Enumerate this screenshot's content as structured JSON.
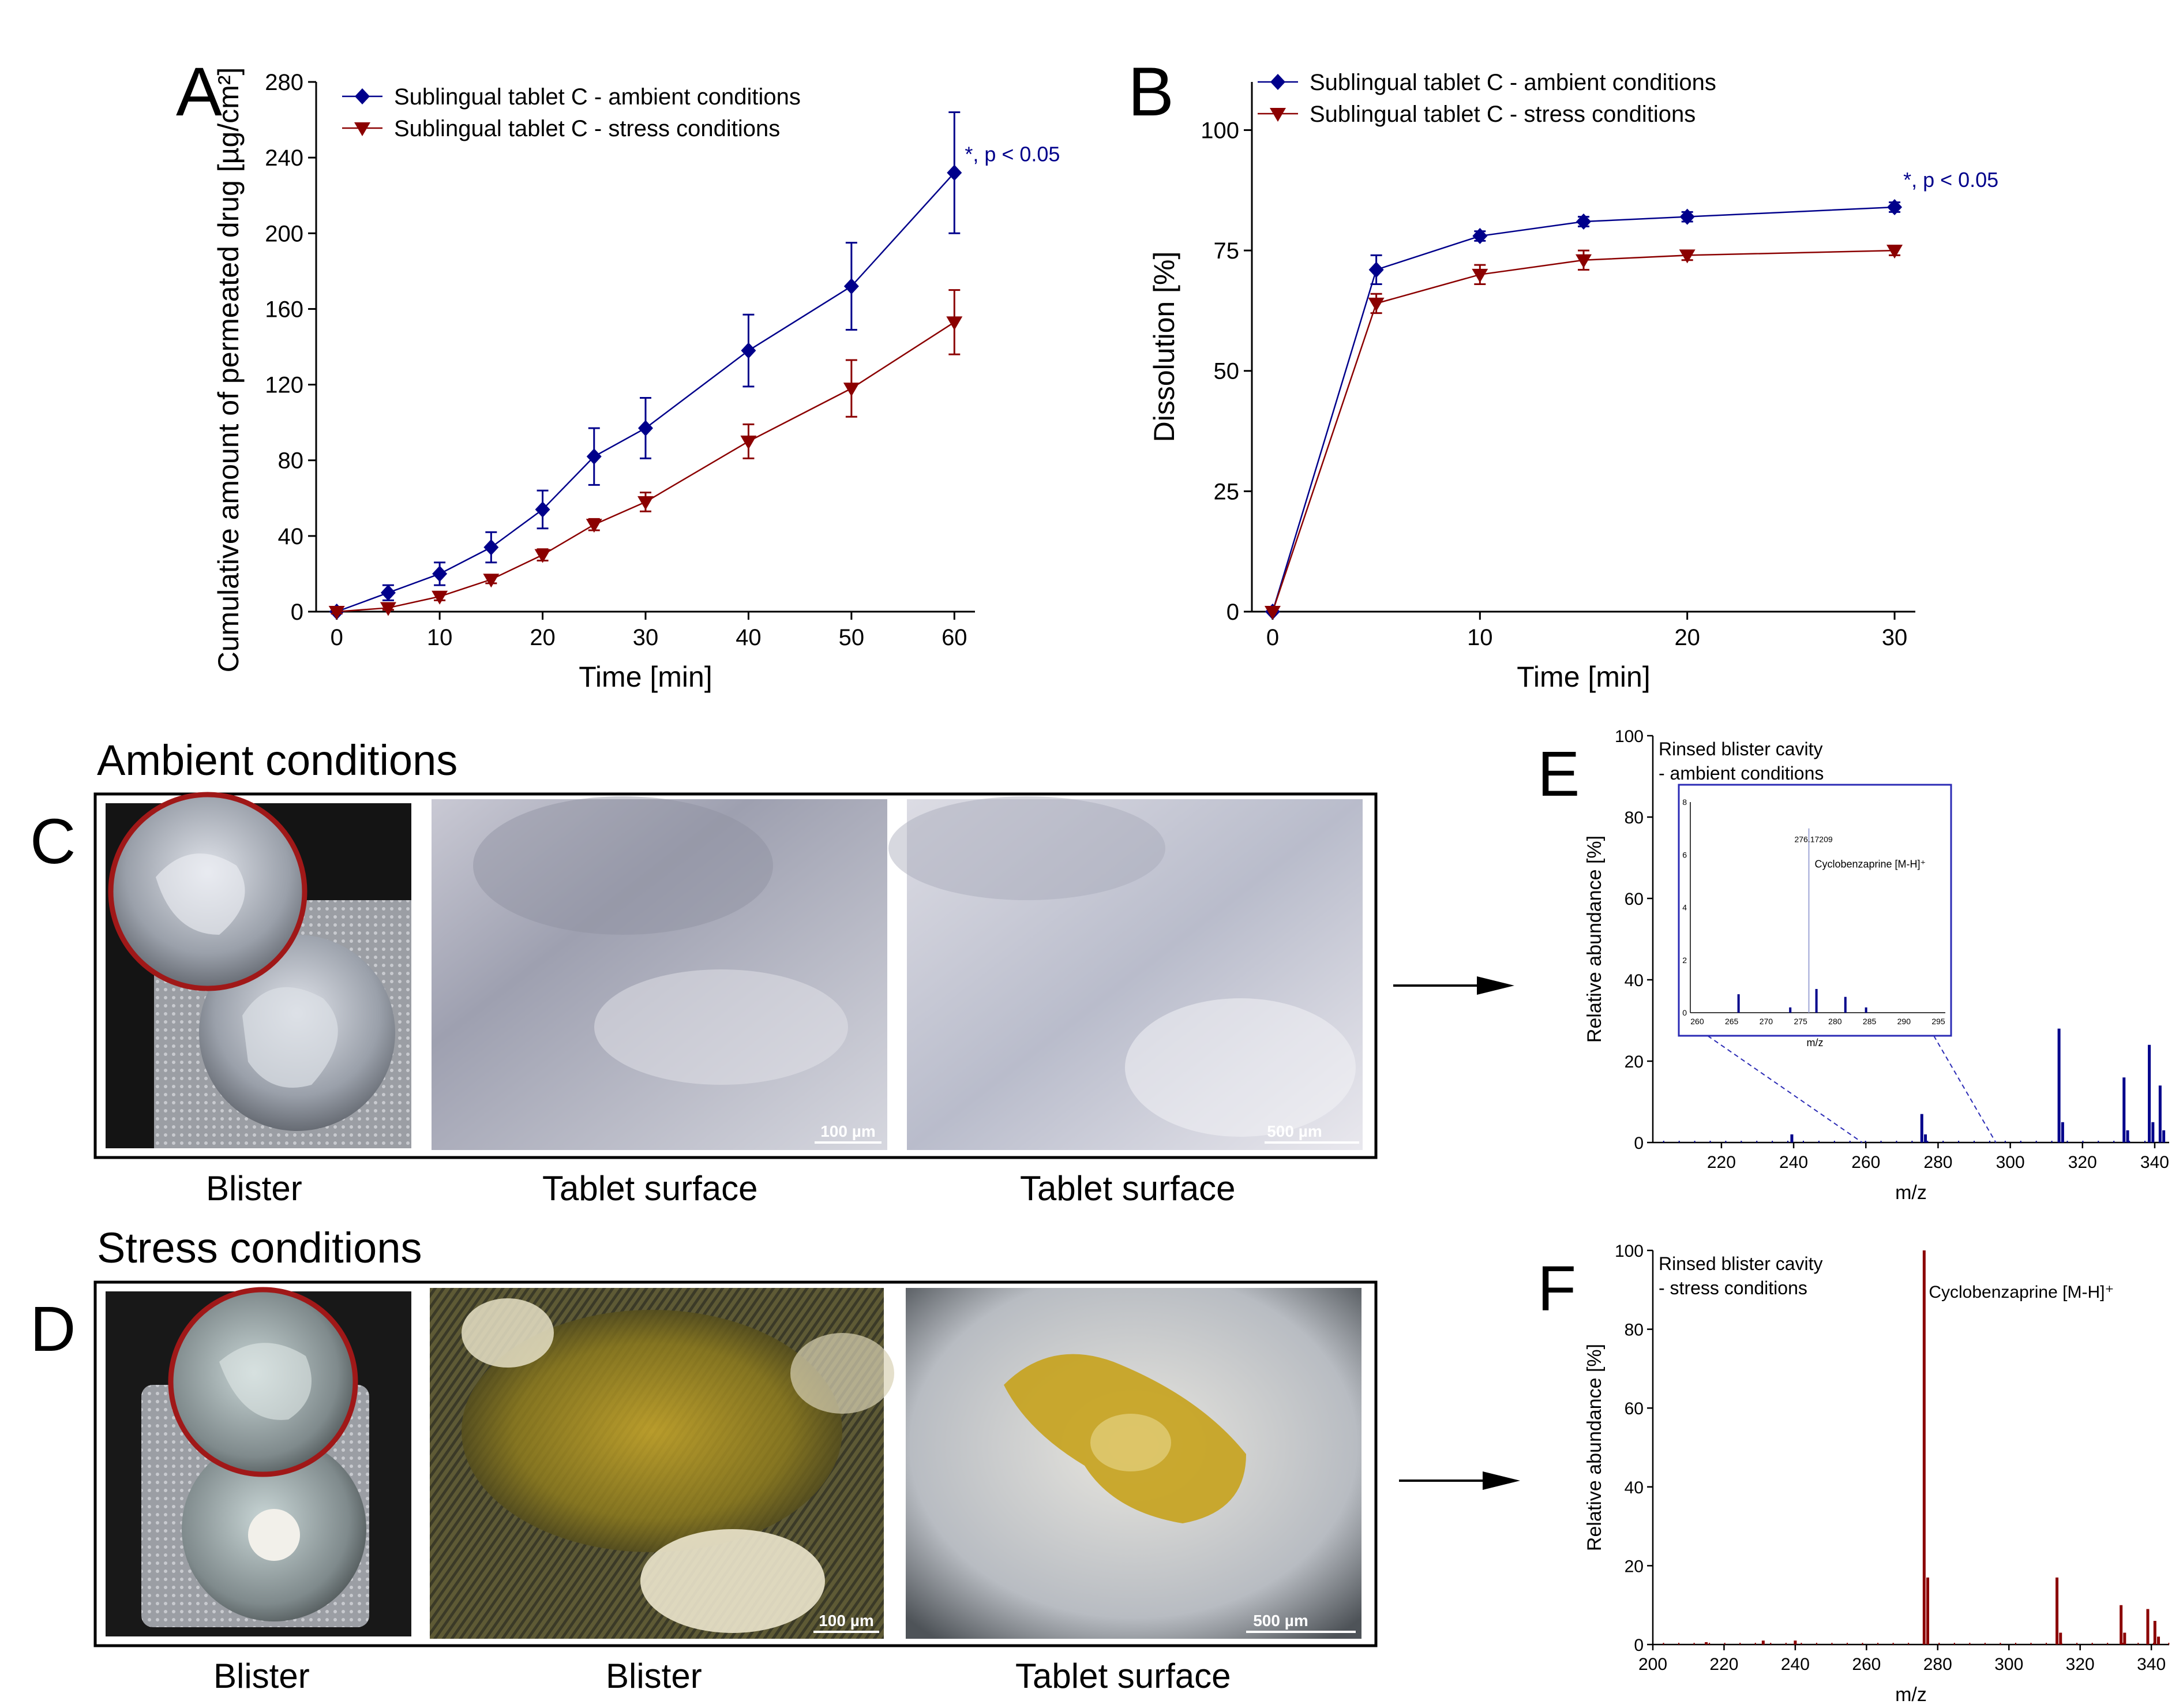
{
  "panels": {
    "A": "A",
    "B": "B",
    "C": "C",
    "D": "D",
    "E": "E",
    "F": "F"
  },
  "colors": {
    "ambient": "#00008b",
    "stress": "#8b0000",
    "axis": "#000000"
  },
  "chart_data": [
    {
      "id": "A",
      "type": "line",
      "xlabel": "Time [min]",
      "ylabel": "Cumulative amount of permeated drug [µg/cm²]",
      "xlim": [
        -2,
        62
      ],
      "ylim": [
        0,
        280
      ],
      "xticks": [
        0,
        10,
        20,
        30,
        40,
        50,
        60
      ],
      "yticks": [
        0,
        40,
        80,
        120,
        160,
        200,
        240,
        280
      ],
      "annotation": "*, p < 0.05",
      "legend_position": "top-left",
      "series": [
        {
          "name": "Sublingual tablet C - ambient conditions",
          "marker": "diamond",
          "color": "#00008b",
          "x": [
            0,
            5,
            10,
            15,
            20,
            25,
            30,
            40,
            50,
            60
          ],
          "y": [
            0,
            10,
            20,
            34,
            54,
            82,
            97,
            138,
            172,
            232
          ],
          "err": [
            1,
            4,
            6,
            8,
            10,
            15,
            16,
            19,
            23,
            32
          ]
        },
        {
          "name": "Sublingual tablet C - stress conditions",
          "marker": "triangle-down",
          "color": "#8b0000",
          "x": [
            0,
            5,
            10,
            15,
            20,
            25,
            30,
            40,
            50,
            60
          ],
          "y": [
            0,
            2,
            8,
            17,
            30,
            46,
            58,
            90,
            118,
            153
          ],
          "err": [
            1,
            1,
            2,
            2,
            3,
            3,
            5,
            9,
            15,
            17
          ]
        }
      ]
    },
    {
      "id": "B",
      "type": "line",
      "xlabel": "Time [min]",
      "ylabel": "Dissolution [%]",
      "xlim": [
        -1,
        31
      ],
      "ylim": [
        0,
        110
      ],
      "xticks": [
        0,
        10,
        20,
        30
      ],
      "yticks": [
        0,
        25,
        50,
        75,
        100
      ],
      "annotation": "*, p < 0.05",
      "legend_position": "top-left",
      "series": [
        {
          "name": "Sublingual tablet C - ambient conditions",
          "marker": "diamond",
          "color": "#00008b",
          "x": [
            0,
            5,
            10,
            15,
            20,
            30
          ],
          "y": [
            0,
            71,
            78,
            81,
            82,
            84
          ],
          "err": [
            0,
            3,
            1,
            1,
            1,
            1
          ]
        },
        {
          "name": "Sublingual tablet C - stress conditions",
          "marker": "triangle-down",
          "color": "#8b0000",
          "x": [
            0,
            5,
            10,
            15,
            20,
            30
          ],
          "y": [
            0,
            64,
            70,
            73,
            74,
            75
          ],
          "err": [
            0,
            2,
            2,
            2,
            1,
            1
          ]
        }
      ]
    },
    {
      "id": "E",
      "type": "bar",
      "title": "Rinsed blister cavity",
      "subtitle": "- ambient conditions",
      "xlabel": "m/z",
      "ylabel": "Relative abundance [%]",
      "xlim": [
        201,
        344
      ],
      "ylim": [
        0,
        100
      ],
      "xticks": [
        220,
        240,
        260,
        280,
        300,
        320,
        340
      ],
      "yticks": [
        0,
        20,
        40,
        60,
        80,
        100
      ],
      "color": "#00008b",
      "peaks_x": [
        239.5,
        275.5,
        276.5,
        313.5,
        314.5,
        331.5,
        332.5,
        338.5,
        339.5,
        341.5,
        342.5
      ],
      "peaks_y": [
        2,
        7,
        2,
        28,
        5,
        16,
        3,
        24,
        5,
        14,
        3
      ],
      "inset": {
        "title": "Cyclobenzaprine [M-H]⁺",
        "peak_label": "276.17209",
        "xlabel": "m/z",
        "xlim": [
          259,
          296
        ],
        "ylim": [
          0,
          8
        ],
        "xticks": [
          260,
          265,
          270,
          275,
          280,
          285,
          290,
          295
        ],
        "yticks": [
          0,
          2,
          4,
          6,
          8
        ],
        "peaks_x": [
          266,
          273.5,
          276.2,
          277.3,
          281.5,
          284.5
        ],
        "peaks_y": [
          0.7,
          0.2,
          7.0,
          0.9,
          0.6,
          0.2
        ]
      }
    },
    {
      "id": "F",
      "type": "bar",
      "title": "Rinsed blister cavity",
      "subtitle": "- stress conditions",
      "xlabel": "m/z",
      "ylabel": "Relative abundance [%]",
      "xlim": [
        200,
        345
      ],
      "ylim": [
        0,
        100
      ],
      "xticks": [
        200,
        220,
        240,
        260,
        280,
        300,
        320,
        340
      ],
      "yticks": [
        0,
        20,
        40,
        60,
        80,
        100
      ],
      "color": "#8b0000",
      "peak_label": "Cyclobenzaprine [M-H]⁺",
      "peaks_x": [
        215,
        231,
        240,
        276.2,
        277.2,
        313.5,
        314.5,
        331.5,
        332.5,
        339,
        341,
        342
      ],
      "peaks_y": [
        0.6,
        1,
        1,
        100,
        17,
        17,
        3,
        10,
        3,
        9,
        6,
        2
      ]
    }
  ],
  "photos": {
    "ambient_title": "Ambient conditions",
    "stress_title": "Stress conditions",
    "ambient_captions": [
      "Blister",
      "Tablet surface",
      "Tablet surface"
    ],
    "stress_captions": [
      "Blister",
      "Blister",
      "Tablet surface"
    ],
    "ambient_scales": [
      "100 µm",
      "500 µm"
    ],
    "stress_scales": [
      "100 µm",
      "500 µm"
    ]
  }
}
